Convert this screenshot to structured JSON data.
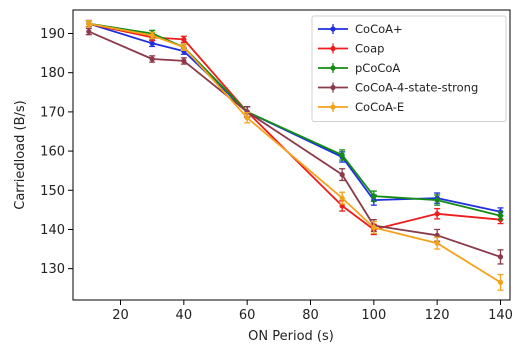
{
  "chart_data": {
    "type": "line",
    "title": "",
    "xlabel": "ON Period (s)",
    "ylabel": "Carriedload (B/s)",
    "xlim": [
      5,
      143
    ],
    "ylim": [
      122,
      196
    ],
    "xticks": [
      20,
      40,
      60,
      80,
      100,
      120,
      140
    ],
    "yticks": [
      130,
      140,
      150,
      160,
      170,
      180,
      190
    ],
    "x": [
      10,
      30,
      40,
      60,
      90,
      100,
      120,
      140
    ],
    "grid": false,
    "legend_position": "top-right",
    "series": [
      {
        "name": "CoCoA+",
        "color": "#1f2fe0",
        "values": [
          192.5,
          187.5,
          185.5,
          170.0,
          158.5,
          147.5,
          148.0,
          144.5
        ],
        "errors": [
          0.8,
          0.8,
          0.8,
          1.3,
          1.3,
          1.3,
          1.3,
          1.0
        ]
      },
      {
        "name": "Coap",
        "color": "#ee1c1c",
        "values": [
          192.5,
          189.0,
          188.5,
          170.0,
          146.0,
          140.0,
          144.0,
          142.5
        ],
        "errors": [
          0.8,
          0.8,
          0.8,
          1.3,
          1.3,
          1.3,
          1.3,
          1.0
        ]
      },
      {
        "name": "pCoCoA",
        "color": "#138c13",
        "values": [
          192.5,
          190.0,
          186.5,
          170.0,
          159.0,
          148.5,
          147.5,
          143.5
        ],
        "errors": [
          0.8,
          0.8,
          0.8,
          1.3,
          1.3,
          1.3,
          1.3,
          1.0
        ]
      },
      {
        "name": "CoCoA-4-state-strong",
        "color": "#8b3a4a",
        "values": [
          190.5,
          183.5,
          183.0,
          170.0,
          154.0,
          141.0,
          138.5,
          133.0
        ],
        "errors": [
          0.8,
          0.8,
          0.8,
          1.3,
          1.5,
          1.5,
          1.5,
          1.8
        ]
      },
      {
        "name": "CoCoA-E",
        "color": "#f5a21b",
        "values": [
          192.5,
          189.5,
          186.5,
          168.5,
          148.0,
          140.5,
          136.5,
          126.5
        ],
        "errors": [
          0.8,
          0.8,
          0.8,
          1.3,
          1.5,
          1.5,
          1.5,
          2.0
        ]
      }
    ]
  }
}
